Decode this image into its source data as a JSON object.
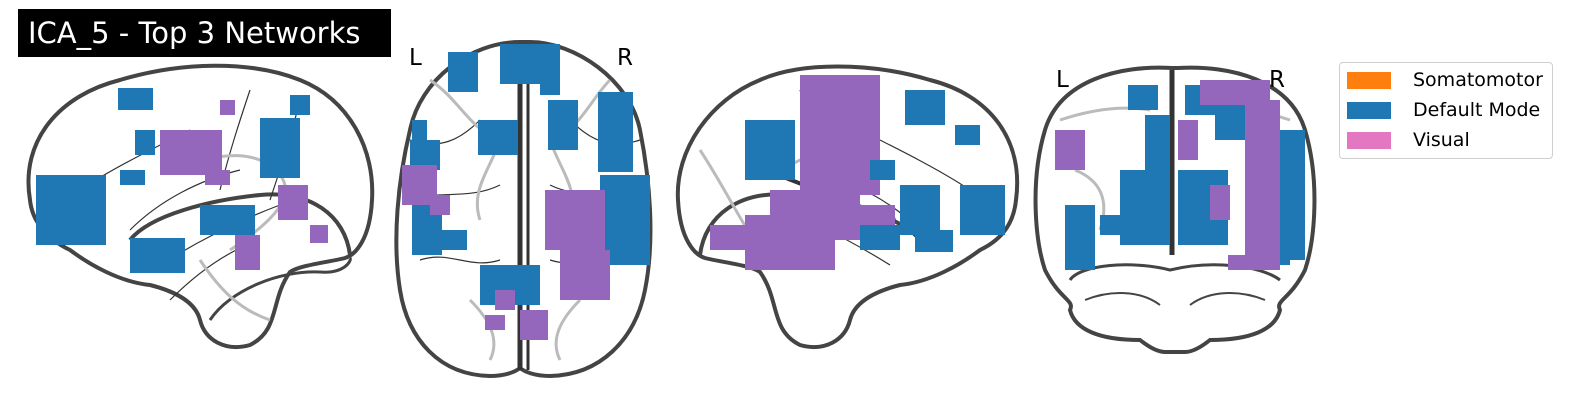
{
  "title": "ICA_5 - Top 3 Networks",
  "views": {
    "axial": {
      "left_label": "L",
      "right_label": "R"
    },
    "coronal": {
      "left_label": "L",
      "right_label": "R"
    }
  },
  "legend": [
    {
      "label": "Somatomotor",
      "color": "#ff7f0e"
    },
    {
      "label": "Default Mode",
      "color": "#1f77b4"
    },
    {
      "label": "Visual",
      "color": "#e377c2"
    }
  ],
  "colors": {
    "default_mode_blob": "#1f77b4",
    "visual_blob": "#9467bd",
    "outline": "#444444",
    "sulci": "#bbbbbb"
  }
}
